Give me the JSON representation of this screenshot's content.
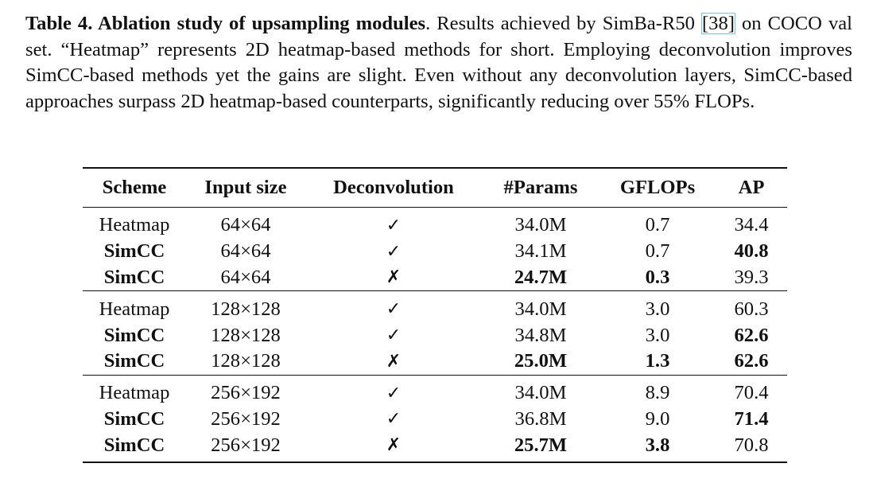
{
  "caption": {
    "title": "Table 4. Ablation study of upsampling modules",
    "text_before_ref": ". Results achieved by SimBa-R50 ",
    "ref": "[38]",
    "text_after_ref": " on COCO val set. “Heatmap” represents 2D heatmap-based methods for short. Employing deconvolution improves SimCC-based methods yet the gains are slight. Even without any deconvolution layers, SimCC-based approaches surpass 2D heatmap-based counterparts, significantly reducing over 55% FLOPs."
  },
  "table": {
    "headers": [
      "Scheme",
      "Input size",
      "Deconvolution",
      "#Params",
      "GFLOPs",
      "AP"
    ],
    "groups": [
      [
        {
          "scheme": "Heatmap",
          "input": "64×64",
          "deconv": "✓",
          "params": "34.0M",
          "gflops": "0.7",
          "ap": "34.4"
        },
        {
          "scheme": "SimCC",
          "input": "64×64",
          "deconv": "✓",
          "params": "34.1M",
          "gflops": "0.7",
          "ap": "40.8"
        },
        {
          "scheme": "SimCC",
          "input": "64×64",
          "deconv": "✗",
          "params": "24.7M",
          "gflops": "0.3",
          "ap": "39.3"
        }
      ],
      [
        {
          "scheme": "Heatmap",
          "input": "128×128",
          "deconv": "✓",
          "params": "34.0M",
          "gflops": "3.0",
          "ap": "60.3"
        },
        {
          "scheme": "SimCC",
          "input": "128×128",
          "deconv": "✓",
          "params": "34.8M",
          "gflops": "3.0",
          "ap": "62.6"
        },
        {
          "scheme": "SimCC",
          "input": "128×128",
          "deconv": "✗",
          "params": "25.0M",
          "gflops": "1.3",
          "ap": "62.6"
        }
      ],
      [
        {
          "scheme": "Heatmap",
          "input": "256×192",
          "deconv": "✓",
          "params": "34.0M",
          "gflops": "8.9",
          "ap": "70.4"
        },
        {
          "scheme": "SimCC",
          "input": "256×192",
          "deconv": "✓",
          "params": "36.8M",
          "gflops": "9.0",
          "ap": "71.4"
        },
        {
          "scheme": "SimCC",
          "input": "256×192",
          "deconv": "✗",
          "params": "25.7M",
          "gflops": "3.8",
          "ap": "70.8"
        }
      ]
    ]
  }
}
